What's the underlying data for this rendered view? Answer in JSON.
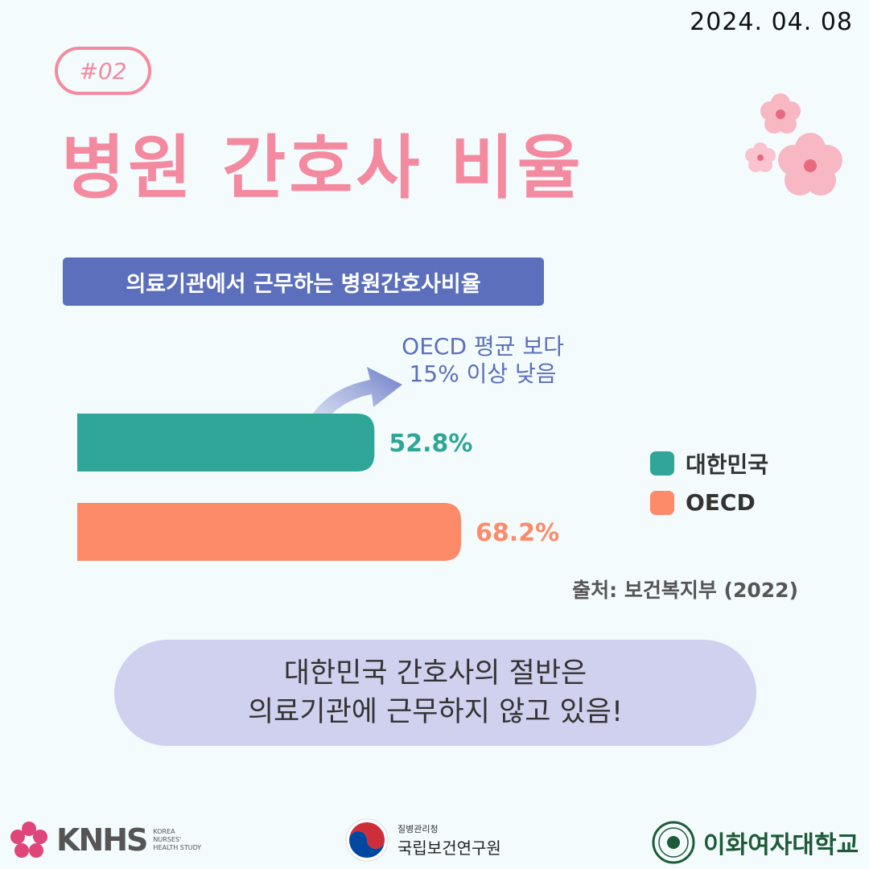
{
  "date": "2024. 04. 08",
  "tag": "#02",
  "title": "병원 간호사 비율",
  "subtitle": "의료기관에서 근무하는 병원간호사비율",
  "annotation": {
    "line1": "OECD 평균 보다",
    "line2": "15% 이상 낮음"
  },
  "source": "출처: 보건복지부 (2022)",
  "message": {
    "line1": "대한민국 간호사의 절반은",
    "line2": "의료기관에 근무하지 않고 있음!"
  },
  "colors": {
    "korea": "#2fa698",
    "oecd": "#fd8a69",
    "accent": "#f48aa0",
    "navy": "#5b6fbd"
  },
  "chart_data": {
    "type": "bar",
    "orientation": "horizontal",
    "categories": [
      "대한민국",
      "OECD"
    ],
    "values": [
      52.8,
      68.2
    ],
    "value_labels": [
      "52.8%",
      "68.2%"
    ],
    "title": "",
    "xlabel": "",
    "ylabel": "",
    "xlim": [
      0,
      100
    ],
    "grid": false,
    "legend": "right"
  },
  "footer": {
    "knhs": {
      "name": "KNHS",
      "sub1": "KOREA",
      "sub2": "NURSES'",
      "sub3": "HEALTH STUDY"
    },
    "kdca": {
      "small": "질병관리청",
      "big": "국립보건연구원"
    },
    "ewha": {
      "name": "이화여자대학교"
    }
  }
}
